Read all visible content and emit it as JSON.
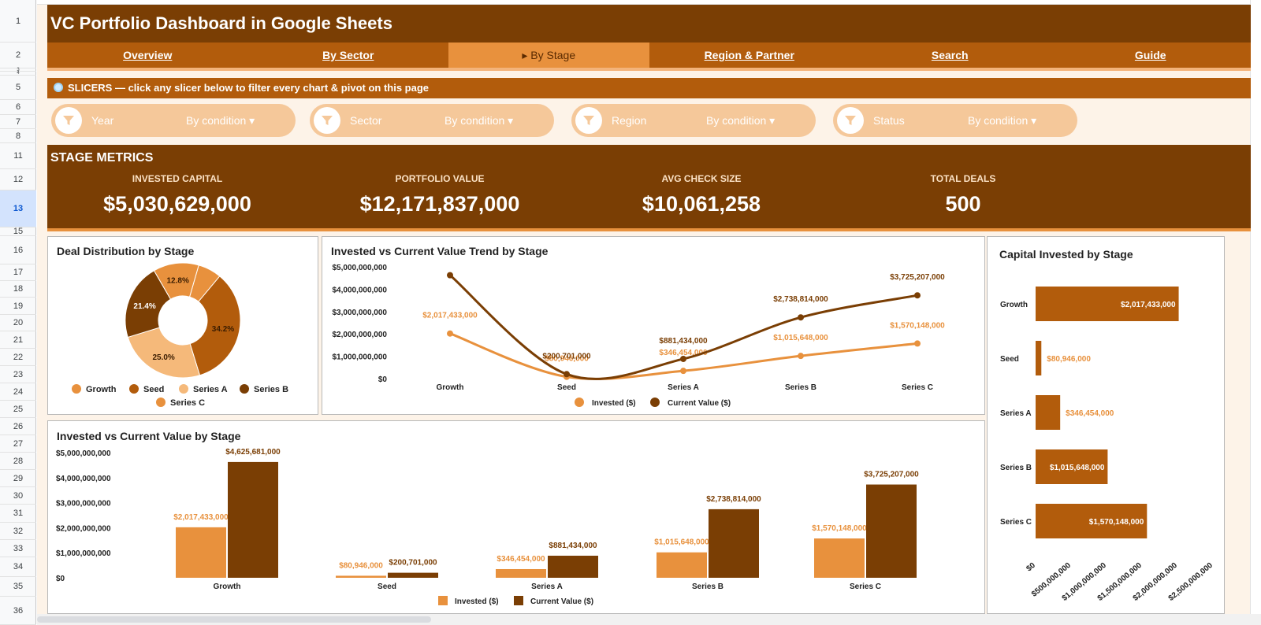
{
  "row_numbers": [
    "1",
    "2",
    "3",
    "4",
    "5",
    "6",
    "7",
    "8",
    "11",
    "12",
    "13",
    "15",
    "16",
    "17",
    "18",
    "19",
    "20",
    "21",
    "22",
    "23",
    "24",
    "25",
    "26",
    "27",
    "28",
    "29",
    "30",
    "31",
    "32",
    "33",
    "34",
    "35",
    "36"
  ],
  "selected_row": "13",
  "title": "VC Portfolio Dashboard in Google Sheets",
  "tabs": [
    "Overview",
    "By Sector",
    "▸ By Stage",
    "Region & Partner",
    "Search",
    "Guide"
  ],
  "active_tab": "▸ By Stage",
  "slicer_banner": {
    "icon": "magnifier-icon",
    "text": "SLICERS  —  click any slicer below to filter every chart & pivot on this page"
  },
  "slicers": [
    {
      "name": "Year",
      "condition": "By condition ▾"
    },
    {
      "name": "Sector",
      "condition": "By condition ▾"
    },
    {
      "name": "Region",
      "condition": "By condition ▾"
    },
    {
      "name": "Status",
      "condition": "By condition ▾"
    }
  ],
  "metrics": {
    "heading": "STAGE METRICS",
    "items": [
      {
        "label": "INVESTED CAPITAL",
        "value": "$5,030,629,000"
      },
      {
        "label": "PORTFOLIO VALUE",
        "value": "$12,171,837,000"
      },
      {
        "label": "AVG CHECK SIZE",
        "value": "$10,061,258"
      },
      {
        "label": "TOTAL DEALS",
        "value": "500"
      }
    ]
  },
  "colors": {
    "dark_brown": "#7a3e04",
    "brown": "#b25c0c",
    "orange": "#e8913d",
    "light_orange": "#f5b97a",
    "peach": "#f5c89a",
    "cream": "#fdf3e8"
  },
  "chart_data": [
    {
      "type": "pie",
      "title": "Deal Distribution by Stage",
      "donut": true,
      "slices": [
        {
          "label": "Growth",
          "pct": 6.6,
          "color": "#e8913d",
          "text": ""
        },
        {
          "label": "Seed",
          "pct": 34.2,
          "color": "#b25c0c",
          "text": "34.2%"
        },
        {
          "label": "Series A",
          "pct": 25.0,
          "color": "#f5b97a",
          "text": "25.0%"
        },
        {
          "label": "Series B",
          "pct": 21.4,
          "color": "#7a3e04",
          "text": "21.4%"
        },
        {
          "label": "Series C",
          "pct": 12.8,
          "color": "#e8913d",
          "text": "12.8%"
        }
      ],
      "legend": [
        "Growth",
        "Seed",
        "Series A",
        "Series B",
        "Series C"
      ],
      "legend_position": "bottom"
    },
    {
      "type": "line",
      "title": "Invested vs Current Value Trend by Stage",
      "categories": [
        "Growth",
        "Seed",
        "Series A",
        "Series B",
        "Series C"
      ],
      "series": [
        {
          "name": "Invested ($)",
          "color": "#e8913d",
          "values": [
            2017433000,
            80946000,
            346454000,
            1015648000,
            1570148000
          ],
          "labels": [
            "$2,017,433,000",
            "$80,946,000",
            "$346,454,000",
            "$1,015,648,000",
            "$1,570,148,000"
          ]
        },
        {
          "name": "Current Value ($)",
          "color": "#7a3e04",
          "values": [
            4625681000,
            200701000,
            881434000,
            2738814000,
            3725207000
          ],
          "labels": [
            "",
            "$200,701,000",
            "$881,434,000",
            "$2,738,814,000",
            "$3,725,207,000"
          ]
        }
      ],
      "yticks": [
        "$0",
        "$1,000,000,000",
        "$2,000,000,000",
        "$3,000,000,000",
        "$4,000,000,000",
        "$5,000,000,000"
      ],
      "ylim": [
        0,
        5000000000
      ],
      "smooth": true,
      "legend_position": "bottom"
    },
    {
      "type": "bar",
      "title": "Invested vs Current Value by Stage",
      "categories": [
        "Growth",
        "Seed",
        "Series A",
        "Series B",
        "Series C"
      ],
      "series": [
        {
          "name": "Invested ($)",
          "color": "#e8913d",
          "values": [
            2017433000,
            80946000,
            346454000,
            1015648000,
            1570148000
          ],
          "labels": [
            "$2,017,433,000",
            "$80,946,000",
            "$346,454,000",
            "$1,015,648,000",
            "$1,570,148,000"
          ]
        },
        {
          "name": "Current Value ($)",
          "color": "#7a3e04",
          "values": [
            4625681000,
            200701000,
            881434000,
            2738814000,
            3725207000
          ],
          "labels": [
            "$4,625,681,000",
            "$200,701,000",
            "$881,434,000",
            "$2,738,814,000",
            "$3,725,207,000"
          ]
        }
      ],
      "yticks": [
        "$0",
        "$1,000,000,000",
        "$2,000,000,000",
        "$3,000,000,000",
        "$4,000,000,000",
        "$5,000,000,000"
      ],
      "ylim": [
        0,
        5000000000
      ],
      "legend_position": "bottom"
    },
    {
      "type": "bar",
      "orientation": "horizontal",
      "title": "Capital Invested by Stage",
      "categories": [
        "Growth",
        "Seed",
        "Series A",
        "Series B",
        "Series C"
      ],
      "values": [
        2017433000,
        80946000,
        346454000,
        1015648000,
        1570148000
      ],
      "labels": [
        "$2,017,433,000",
        "$80,946,000",
        "$346,454,000",
        "$1,015,648,000",
        "$1,570,148,000"
      ],
      "color": "#b25c0c",
      "xticks": [
        "$0",
        "$500,000,000",
        "$1,000,000,000",
        "$1,500,000,000",
        "$2,000,000,000",
        "$2,500,000,000"
      ],
      "xlim": [
        0,
        2500000000
      ]
    }
  ]
}
